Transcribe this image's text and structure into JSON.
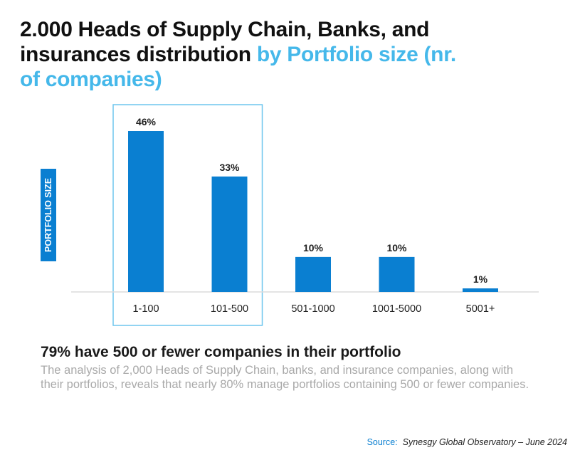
{
  "title": {
    "part1": "2.000 Heads of Supply Chain, Banks, and insurances distribution ",
    "part2": "by Portfolio size (nr. of companies)"
  },
  "colors": {
    "bar": "#0a7fd1",
    "accent": "#45b8ea",
    "highlight_box": "#6fc6ee",
    "baseline": "#dcdcdc",
    "ylabel_bg": "#0a7fd1"
  },
  "chart_data": {
    "type": "bar",
    "categories": [
      "1-100",
      "101-500",
      "501-1000",
      "1001-5000",
      "5001+"
    ],
    "values": [
      46,
      33,
      10,
      10,
      1
    ],
    "data_labels": [
      "46%",
      "33%",
      "10%",
      "10%",
      "1%"
    ],
    "ylabel": "PORTFOLIO SIZE",
    "xlabel": "",
    "ylim": [
      0,
      46
    ],
    "grid": false,
    "highlighted_categories": [
      "1-100",
      "101-500"
    ]
  },
  "summary": {
    "headline": "79% have 500 or fewer companies in their portfolio",
    "description": "The analysis of 2,000 Heads of Supply Chain, banks, and insurance companies, along with their portfolios, reveals that nearly 80% manage portfolios containing 500 or fewer companies."
  },
  "source": {
    "label": "Source:",
    "text": "Synesgy Global Observatory – June 2024"
  }
}
